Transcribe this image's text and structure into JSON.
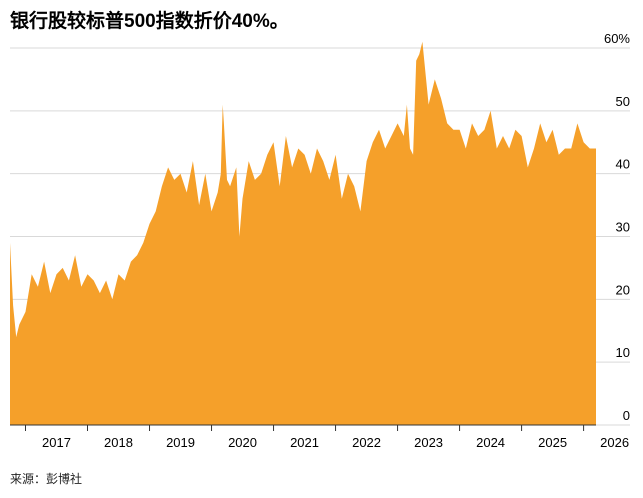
{
  "title": "银行股较标普500指数折价40%。",
  "source": "来源：彭博社",
  "chart_data": {
    "type": "area",
    "title": "银行股较标普500指数折价40%。",
    "xlabel": "",
    "ylabel": "",
    "ylim": [
      0,
      60
    ],
    "y_ticks": [
      0,
      10,
      20,
      30,
      40,
      50,
      60
    ],
    "y_tick_labels": [
      "0",
      "10",
      "20",
      "30",
      "40",
      "50",
      "60%"
    ],
    "x_ticks": [
      "2017",
      "2018",
      "2019",
      "2020",
      "2021",
      "2022",
      "2023",
      "2024",
      "2025",
      "2026"
    ],
    "xlim": [
      2016.75,
      2026.2
    ],
    "grid": "horizontal",
    "color": "#F5A02A",
    "x": [
      2016.75,
      2016.8,
      2016.85,
      2016.9,
      2017.0,
      2017.1,
      2017.2,
      2017.3,
      2017.4,
      2017.5,
      2017.6,
      2017.7,
      2017.8,
      2017.9,
      2018.0,
      2018.1,
      2018.2,
      2018.3,
      2018.4,
      2018.5,
      2018.6,
      2018.7,
      2018.8,
      2018.9,
      2019.0,
      2019.1,
      2019.2,
      2019.3,
      2019.4,
      2019.5,
      2019.6,
      2019.7,
      2019.8,
      2019.9,
      2020.0,
      2020.1,
      2020.15,
      2020.18,
      2020.2,
      2020.25,
      2020.3,
      2020.4,
      2020.45,
      2020.5,
      2020.6,
      2020.7,
      2020.8,
      2020.9,
      2021.0,
      2021.1,
      2021.2,
      2021.3,
      2021.4,
      2021.5,
      2021.6,
      2021.7,
      2021.8,
      2021.9,
      2022.0,
      2022.1,
      2022.2,
      2022.3,
      2022.4,
      2022.5,
      2022.6,
      2022.7,
      2022.8,
      2022.9,
      2023.0,
      2023.1,
      2023.15,
      2023.2,
      2023.25,
      2023.3,
      2023.35,
      2023.4,
      2023.5,
      2023.6,
      2023.7,
      2023.8,
      2023.9,
      2024.0,
      2024.1,
      2024.2,
      2024.3,
      2024.4,
      2024.5,
      2024.6,
      2024.7,
      2024.8,
      2024.9,
      2025.0,
      2025.1,
      2025.2,
      2025.3,
      2025.4,
      2025.5,
      2025.6,
      2025.7,
      2025.8,
      2025.9,
      2026.0,
      2026.1,
      2026.2
    ],
    "values": [
      29,
      19,
      14,
      16,
      18,
      24,
      22,
      26,
      21,
      24,
      25,
      23,
      27,
      22,
      24,
      23,
      21,
      23,
      20,
      24,
      23,
      26,
      27,
      29,
      32,
      34,
      38,
      41,
      39,
      40,
      37,
      42,
      35,
      40,
      34,
      37,
      40,
      51,
      48,
      39,
      38,
      41,
      30,
      36,
      42,
      39,
      40,
      43,
      45,
      38,
      46,
      41,
      44,
      43,
      40,
      44,
      42,
      39,
      43,
      36,
      40,
      38,
      34,
      42,
      45,
      47,
      44,
      46,
      48,
      46,
      51,
      44,
      43,
      58,
      59,
      61,
      51,
      55,
      52,
      48,
      47,
      47,
      44,
      48,
      46,
      47,
      50,
      44,
      46,
      44,
      47,
      46,
      41,
      44,
      48,
      45,
      47,
      43,
      44,
      44,
      48,
      45,
      44,
      44
    ]
  }
}
